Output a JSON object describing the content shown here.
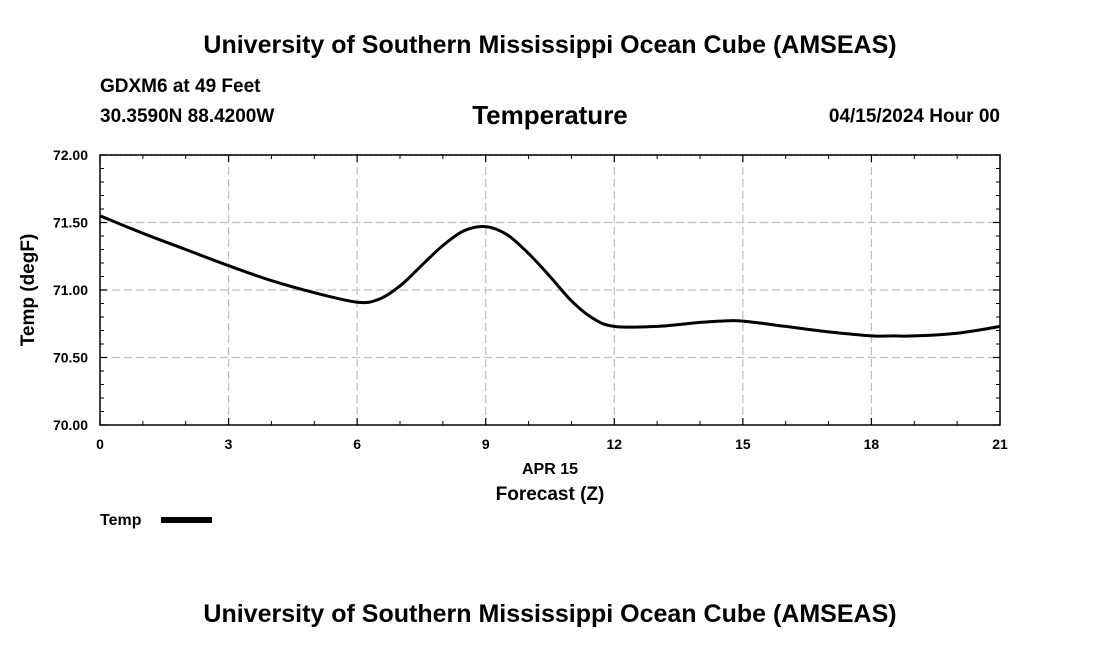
{
  "header": {
    "title_top": "University of Southern Mississippi Ocean Cube (AMSEAS)",
    "title_bottom": "University of Southern Mississippi Ocean Cube (AMSEAS)",
    "station": "GDXM6 at 49 Feet",
    "coords": "30.3590N  88.4200W",
    "datetime": "04/15/2024 Hour 00"
  },
  "chart_data": {
    "type": "line",
    "title": "Temperature",
    "xlabel": "Forecast (Z)",
    "x_sublabel": "APR 15",
    "ylabel": "Temp (degF)",
    "xlim": [
      0,
      21
    ],
    "ylim": [
      70.0,
      72.0
    ],
    "x_ticks": [
      0,
      3,
      6,
      9,
      12,
      15,
      18,
      21
    ],
    "y_ticks": [
      70.0,
      70.5,
      71.0,
      71.5,
      72.0
    ],
    "y_tick_labels": [
      "70.00",
      "70.50",
      "71.00",
      "71.50",
      "72.00"
    ],
    "grid": true,
    "legend": {
      "position": "bottom-left",
      "entries": [
        {
          "label": "Temp",
          "color": "#000000"
        }
      ]
    },
    "series": [
      {
        "name": "Temp",
        "color": "#000000",
        "x": [
          0,
          1,
          2,
          3,
          4,
          5,
          6,
          6.5,
          7,
          7.5,
          8,
          8.5,
          9,
          9.5,
          10,
          10.5,
          11,
          11.5,
          12,
          13,
          14,
          14.5,
          15,
          16,
          17,
          18,
          18.5,
          19,
          20,
          21
        ],
        "y": [
          71.55,
          71.42,
          71.3,
          71.18,
          71.07,
          70.98,
          70.91,
          70.93,
          71.03,
          71.18,
          71.33,
          71.44,
          71.47,
          71.41,
          71.27,
          71.1,
          70.92,
          70.79,
          70.73,
          70.73,
          70.76,
          70.77,
          70.77,
          70.73,
          70.69,
          70.66,
          70.66,
          70.66,
          70.68,
          70.73
        ]
      }
    ]
  }
}
